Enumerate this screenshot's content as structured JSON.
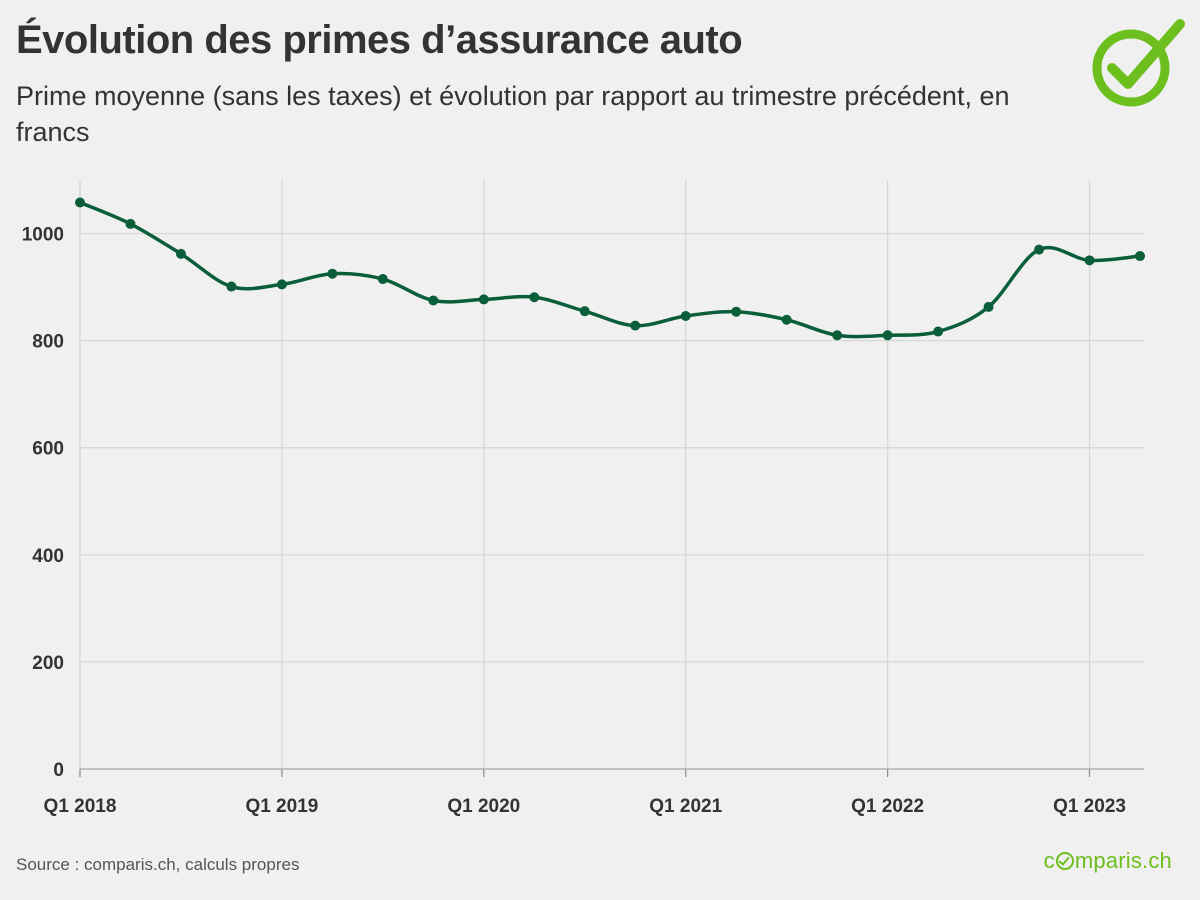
{
  "header": {
    "title": "Évolution des primes d’assurance auto",
    "subtitle": "Prime moyenne (sans les taxes) et évolution par rapport au trimestre précédent, en francs"
  },
  "footer": {
    "source": "Source : comparis.ch, calculs propres",
    "brand_prefix": "c",
    "brand_suffix": "mparis.ch"
  },
  "icons": {
    "logo": "check-circle-icon",
    "brand_o": "check-circle-icon"
  },
  "colors": {
    "line": "#0b5e3a",
    "logo": "#6cbf1c",
    "grid": "#d6d6d6",
    "text": "#333333"
  },
  "chart_data": {
    "type": "line",
    "title": "Évolution des primes d’assurance auto",
    "subtitle": "Prime moyenne (sans les taxes) et évolution par rapport au trimestre précédent, en francs",
    "ylim": [
      0,
      1100
    ],
    "yticks": [
      0,
      200,
      400,
      600,
      800,
      1000
    ],
    "xtick_labels": [
      "Q1 2018",
      "Q1 2019",
      "Q1 2020",
      "Q1 2021",
      "Q1 2022",
      "Q1 2023"
    ],
    "grid": true,
    "legend": "none",
    "x": [
      "Q1 2018",
      "Q2 2018",
      "Q3 2018",
      "Q4 2018",
      "Q1 2019",
      "Q2 2019",
      "Q3 2019",
      "Q4 2019",
      "Q1 2020",
      "Q2 2020",
      "Q3 2020",
      "Q4 2020",
      "Q1 2021",
      "Q2 2021",
      "Q3 2021",
      "Q4 2021",
      "Q1 2022",
      "Q2 2022",
      "Q3 2022",
      "Q4 2022",
      "Q1 2023",
      "Q2 2023"
    ],
    "series": [
      {
        "values": [
          1058,
          1018,
          962,
          901,
          905,
          925,
          915,
          875,
          877,
          881,
          855,
          828,
          846,
          854,
          839,
          810,
          810,
          817,
          863,
          970,
          950,
          958
        ]
      }
    ]
  }
}
